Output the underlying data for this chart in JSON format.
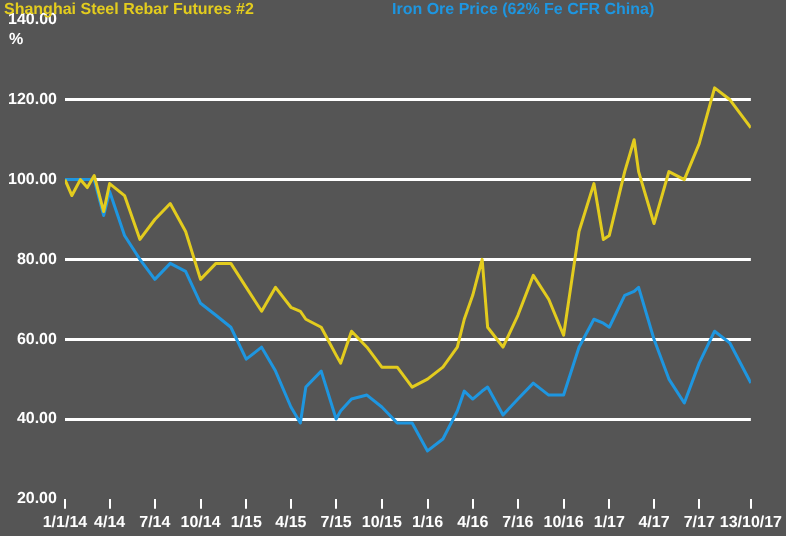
{
  "chart_data": {
    "type": "line",
    "ylabel": "%",
    "legend": "top",
    "grid": "y",
    "xlim": [
      "2014-01-01",
      "2017-10-13"
    ],
    "xticks": [
      {
        "value": "2014-01-01",
        "label": "1/1/14"
      },
      {
        "value": "2014-04-01",
        "label": "4/14"
      },
      {
        "value": "2014-07-01",
        "label": "7/14"
      },
      {
        "value": "2014-10-01",
        "label": "10/14"
      },
      {
        "value": "2015-01-01",
        "label": "1/15"
      },
      {
        "value": "2015-04-01",
        "label": "4/15"
      },
      {
        "value": "2015-07-01",
        "label": "7/15"
      },
      {
        "value": "2015-10-01",
        "label": "10/15"
      },
      {
        "value": "2016-01-01",
        "label": "1/16"
      },
      {
        "value": "2016-04-01",
        "label": "4/16"
      },
      {
        "value": "2016-07-01",
        "label": "7/16"
      },
      {
        "value": "2016-10-01",
        "label": "10/16"
      },
      {
        "value": "2017-01-01",
        "label": "1/17"
      },
      {
        "value": "2017-04-01",
        "label": "4/17"
      },
      {
        "value": "2017-07-01",
        "label": "7/17"
      },
      {
        "value": "2017-10-13",
        "label": "13/10/17"
      }
    ],
    "ylim": [
      20,
      140
    ],
    "yticks": [
      {
        "value": 20,
        "label": "20.00"
      },
      {
        "value": 40,
        "label": "40.00"
      },
      {
        "value": 60,
        "label": "60.00"
      },
      {
        "value": 80,
        "label": "80.00"
      },
      {
        "value": 100,
        "label": "100.00"
      },
      {
        "value": 120,
        "label": "120.00"
      },
      {
        "value": 140,
        "label": "140.00"
      }
    ],
    "x": [
      "2014-01-01",
      "2014-01-15",
      "2014-02-01",
      "2014-02-15",
      "2014-03-01",
      "2014-03-20",
      "2014-04-01",
      "2014-05-01",
      "2014-06-01",
      "2014-07-01",
      "2014-08-01",
      "2014-09-01",
      "2014-10-01",
      "2014-11-01",
      "2014-12-01",
      "2015-01-01",
      "2015-02-01",
      "2015-03-01",
      "2015-04-01",
      "2015-04-20",
      "2015-05-01",
      "2015-06-01",
      "2015-07-01",
      "2015-07-10",
      "2015-08-01",
      "2015-09-01",
      "2015-10-01",
      "2015-11-01",
      "2015-12-01",
      "2016-01-01",
      "2016-02-01",
      "2016-03-01",
      "2016-03-15",
      "2016-04-01",
      "2016-04-20",
      "2016-05-01",
      "2016-06-01",
      "2016-07-01",
      "2016-08-01",
      "2016-09-01",
      "2016-10-01",
      "2016-11-01",
      "2016-12-01",
      "2016-12-20",
      "2017-01-01",
      "2017-02-01",
      "2017-02-20",
      "2017-03-01",
      "2017-04-01",
      "2017-05-01",
      "2017-06-01",
      "2017-07-01",
      "2017-08-01",
      "2017-09-01",
      "2017-10-13"
    ],
    "series": [
      {
        "name": "Shanghai Steel Rebar Futures #2",
        "color": "#e3cc1e",
        "values": [
          100,
          96,
          100,
          98,
          101,
          92,
          99,
          96,
          85,
          90,
          94,
          87,
          75,
          79,
          79,
          73,
          67,
          73,
          68,
          67,
          65,
          63,
          56,
          54,
          62,
          58,
          53,
          53,
          48,
          50,
          53,
          58,
          65,
          71,
          80,
          63,
          58,
          66,
          76,
          70,
          61,
          87,
          99,
          85,
          86,
          102,
          110,
          102,
          89,
          102,
          100,
          109,
          123,
          120,
          113
        ]
      },
      {
        "name": "Iron Ore Price (62% Fe CFR China)",
        "color": "#1e96e0",
        "values": [
          100,
          100,
          100,
          100,
          100,
          91,
          97,
          86,
          80,
          75,
          79,
          77,
          69,
          66,
          63,
          55,
          58,
          52,
          43,
          39,
          48,
          52,
          40,
          42,
          45,
          46,
          43,
          39,
          39,
          32,
          35,
          42,
          47,
          45,
          47,
          48,
          41,
          45,
          49,
          46,
          46,
          58,
          65,
          64,
          63,
          71,
          72,
          73,
          60,
          50,
          44,
          54,
          62,
          59,
          49
        ]
      }
    ]
  }
}
